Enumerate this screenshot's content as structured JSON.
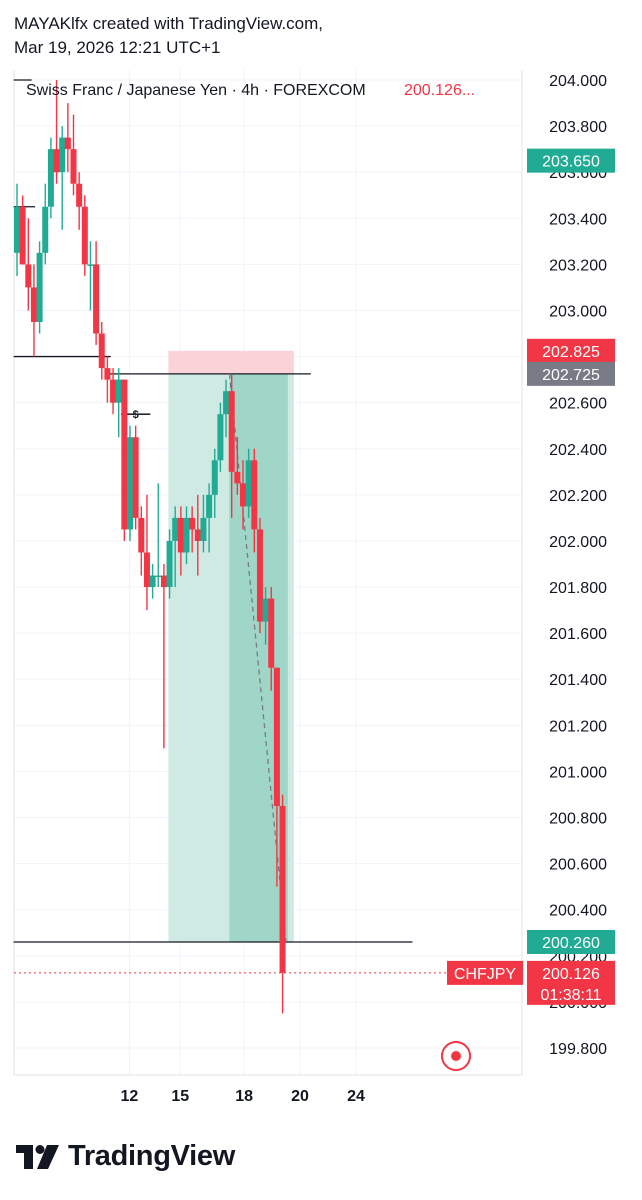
{
  "header": {
    "line1": "MAYAKlfx created with TradingView.com,",
    "line2": "Mar 19, 2026 12:21 UTC+1"
  },
  "footer": {
    "brand": "TradingView",
    "logo_icon": "tradingview-logo-icon"
  },
  "colors": {
    "up": "#22ab94",
    "down": "#f23645",
    "grid": "#f0f3fa",
    "profit_zone": "#cfeae3",
    "profit_zone_active": "#9fd6c8",
    "stop_zone": "#f9d3d8",
    "text": "#131722",
    "axis_text": "#131722"
  },
  "chart_data": {
    "type": "candlestick",
    "symbol": "CHFJPY",
    "title": "Swiss Franc / Japanese Yen · 4h · FOREXCOM",
    "last_price_text": "200.126...",
    "ylim": [
      199.7,
      204.1
    ],
    "y_ticks": [
      "204.000",
      "203.800",
      "203.600",
      "203.400",
      "203.200",
      "203.000",
      "202.800",
      "202.600",
      "202.400",
      "202.200",
      "202.000",
      "201.800",
      "201.600",
      "201.400",
      "201.200",
      "201.000",
      "200.800",
      "200.600",
      "200.400",
      "200.200",
      "200.000",
      "199.800"
    ],
    "x_ticks": [
      {
        "label": "12",
        "t": 9.95
      },
      {
        "label": "15",
        "t": 14.45
      },
      {
        "label": "18",
        "t": 20.1
      },
      {
        "label": "20",
        "t": 25.05
      },
      {
        "label": "24",
        "t": 30.0
      }
    ],
    "candles": [
      {
        "t": 0,
        "o": 203.25,
        "h": 203.55,
        "l": 203.15,
        "c": 203.45
      },
      {
        "t": 0.5,
        "o": 203.45,
        "h": 203.5,
        "l": 203.2,
        "c": 203.2
      },
      {
        "t": 1,
        "o": 203.2,
        "h": 203.4,
        "l": 203.0,
        "c": 203.1
      },
      {
        "t": 1.5,
        "o": 203.1,
        "h": 203.2,
        "l": 202.8,
        "c": 202.95
      },
      {
        "t": 2,
        "o": 202.95,
        "h": 203.3,
        "l": 202.9,
        "c": 203.25
      },
      {
        "t": 2.5,
        "o": 203.25,
        "h": 203.55,
        "l": 203.2,
        "c": 203.45
      },
      {
        "t": 3,
        "o": 203.45,
        "h": 203.75,
        "l": 203.4,
        "c": 203.7
      },
      {
        "t": 3.5,
        "o": 203.7,
        "h": 204.0,
        "l": 203.55,
        "c": 203.6
      },
      {
        "t": 4,
        "o": 203.6,
        "h": 203.8,
        "l": 203.35,
        "c": 203.75
      },
      {
        "t": 4.5,
        "o": 203.75,
        "h": 203.9,
        "l": 203.6,
        "c": 203.7
      },
      {
        "t": 5,
        "o": 203.7,
        "h": 203.85,
        "l": 203.5,
        "c": 203.55
      },
      {
        "t": 5.5,
        "o": 203.55,
        "h": 203.6,
        "l": 203.35,
        "c": 203.45
      },
      {
        "t": 6,
        "o": 203.45,
        "h": 203.5,
        "l": 203.15,
        "c": 203.2
      },
      {
        "t": 6.5,
        "o": 203.2,
        "h": 203.3,
        "l": 203.0,
        "c": 203.2
      },
      {
        "t": 7,
        "o": 203.2,
        "h": 203.3,
        "l": 202.85,
        "c": 202.9
      },
      {
        "t": 7.5,
        "o": 202.9,
        "h": 202.95,
        "l": 202.7,
        "c": 202.75
      },
      {
        "t": 8,
        "o": 202.75,
        "h": 202.8,
        "l": 202.6,
        "c": 202.7
      },
      {
        "t": 8.5,
        "o": 202.7,
        "h": 202.75,
        "l": 202.55,
        "c": 202.6
      },
      {
        "t": 9,
        "o": 202.6,
        "h": 202.75,
        "l": 202.45,
        "c": 202.7
      },
      {
        "t": 9.5,
        "o": 202.7,
        "h": 202.7,
        "l": 202.0,
        "c": 202.05
      },
      {
        "t": 10,
        "o": 202.05,
        "h": 202.5,
        "l": 202.0,
        "c": 202.45
      },
      {
        "t": 10.5,
        "o": 202.45,
        "h": 202.5,
        "l": 202.05,
        "c": 202.1
      },
      {
        "t": 11,
        "o": 202.1,
        "h": 202.15,
        "l": 201.85,
        "c": 201.95
      },
      {
        "t": 11.5,
        "o": 201.95,
        "h": 202.2,
        "l": 201.7,
        "c": 201.8
      },
      {
        "t": 12,
        "o": 201.8,
        "h": 201.9,
        "l": 201.75,
        "c": 201.85
      },
      {
        "t": 12.5,
        "o": 201.85,
        "h": 202.25,
        "l": 201.8,
        "c": 201.85
      },
      {
        "t": 13,
        "o": 201.85,
        "h": 201.9,
        "l": 201.1,
        "c": 201.8
      },
      {
        "t": 13.5,
        "o": 201.8,
        "h": 202.05,
        "l": 201.75,
        "c": 202.0
      },
      {
        "t": 14,
        "o": 202.0,
        "h": 202.15,
        "l": 201.8,
        "c": 202.1
      },
      {
        "t": 14.5,
        "o": 202.1,
        "h": 202.15,
        "l": 201.85,
        "c": 201.95
      },
      {
        "t": 15,
        "o": 201.95,
        "h": 202.15,
        "l": 201.9,
        "c": 202.1
      },
      {
        "t": 15.5,
        "o": 202.1,
        "h": 202.15,
        "l": 201.95,
        "c": 202.05
      },
      {
        "t": 16,
        "o": 202.05,
        "h": 202.2,
        "l": 201.85,
        "c": 202.0
      },
      {
        "t": 16.5,
        "o": 202.0,
        "h": 202.2,
        "l": 201.95,
        "c": 202.1
      },
      {
        "t": 17,
        "o": 202.1,
        "h": 202.25,
        "l": 201.95,
        "c": 202.2
      },
      {
        "t": 17.5,
        "o": 202.2,
        "h": 202.4,
        "l": 202.1,
        "c": 202.35
      },
      {
        "t": 18,
        "o": 202.35,
        "h": 202.6,
        "l": 202.3,
        "c": 202.55
      },
      {
        "t": 18.5,
        "o": 202.55,
        "h": 202.7,
        "l": 202.45,
        "c": 202.65
      },
      {
        "t": 19,
        "o": 202.65,
        "h": 202.72,
        "l": 202.1,
        "c": 202.3
      },
      {
        "t": 19.5,
        "o": 202.3,
        "h": 202.45,
        "l": 202.2,
        "c": 202.25
      },
      {
        "t": 20,
        "o": 202.25,
        "h": 202.35,
        "l": 202.05,
        "c": 202.15
      },
      {
        "t": 20.5,
        "o": 202.15,
        "h": 202.4,
        "l": 202.1,
        "c": 202.35
      },
      {
        "t": 21,
        "o": 202.35,
        "h": 202.4,
        "l": 201.95,
        "c": 202.05
      },
      {
        "t": 21.5,
        "o": 202.05,
        "h": 202.1,
        "l": 201.6,
        "c": 201.65
      },
      {
        "t": 22,
        "o": 201.65,
        "h": 201.8,
        "l": 201.55,
        "c": 201.75
      },
      {
        "t": 22.5,
        "o": 201.75,
        "h": 201.8,
        "l": 201.35,
        "c": 201.45
      },
      {
        "t": 23,
        "o": 201.45,
        "h": 201.45,
        "l": 200.5,
        "c": 200.85
      },
      {
        "t": 23.5,
        "o": 200.85,
        "h": 200.9,
        "l": 199.95,
        "c": 200.126
      }
    ],
    "lines": [
      {
        "price": 204.0,
        "t_start": -0.3,
        "t_end": 1.3
      },
      {
        "price": 203.45,
        "t_start": -0.3,
        "t_end": 1.6
      },
      {
        "price": 202.8,
        "t_start": -0.3,
        "t_end": 8.3
      },
      {
        "price": 202.725,
        "t_start": 8.2,
        "t_end": 26.0
      },
      {
        "price": 200.26,
        "t_start": -0.3,
        "t_end": 35.0
      }
    ],
    "liquidity_marker": {
      "label": "$",
      "price": 202.55,
      "t_start": 9.2,
      "t_end": 11.8
    },
    "position": {
      "type": "short",
      "entry": 202.725,
      "stop": 202.825,
      "target": 200.26,
      "t_start": 13.4,
      "t_active": 18.8,
      "t_end": 24.5
    },
    "trend_line": {
      "t1": 18.8,
      "p1": 202.725,
      "t2": 23.8,
      "p2": 200.26
    },
    "price_tags": [
      {
        "price": 203.65,
        "label": "203.650",
        "kind": "up"
      },
      {
        "price": 202.825,
        "label": "202.825",
        "kind": "down"
      },
      {
        "price": 202.725,
        "label": "202.725",
        "kind": "gray"
      },
      {
        "price": 200.26,
        "label": "200.260",
        "kind": "up"
      },
      {
        "price": 200.126,
        "label": "200.126",
        "kind": "down",
        "countdown": "01:38:11",
        "symbol": "CHFJPY"
      }
    ]
  }
}
